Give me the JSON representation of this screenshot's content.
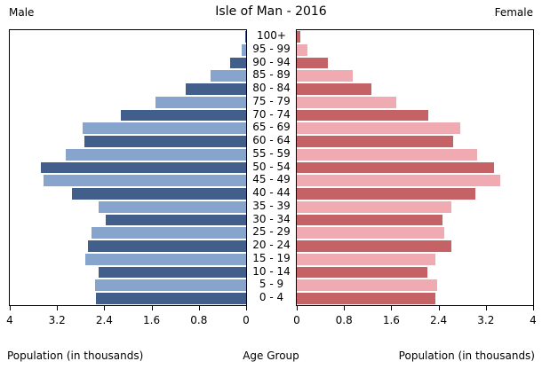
{
  "title": "Isle of Man - 2016",
  "left_header": "Male",
  "right_header": "Female",
  "footer": {
    "left_axis_label": "Population (in thousands)",
    "center_label": "Age Group",
    "right_axis_label": "Population (in thousands)"
  },
  "colors": {
    "male_dark": "#415f8a",
    "male_light": "#87a4cd",
    "female_dark": "#c56266",
    "female_light": "#f0aab2",
    "axis": "#000000",
    "background": "#ffffff"
  },
  "chart_data": {
    "type": "bar",
    "subtype": "population-pyramid",
    "title": "Isle of Man - 2016",
    "xlabel": "Population (in thousands)",
    "center_axis_label": "Age Group",
    "xlim": [
      0,
      4
    ],
    "xticks": [
      0,
      0.8,
      1.6,
      2.4,
      3.2,
      4
    ],
    "grid": false,
    "legend": "none",
    "categories_top_to_bottom": [
      "100+",
      "95 - 99",
      "90 - 94",
      "85 - 89",
      "80 - 84",
      "75 - 79",
      "70 - 74",
      "65 - 69",
      "60 - 64",
      "55 - 59",
      "50 - 54",
      "45 - 49",
      "40 - 44",
      "35 - 39",
      "30 - 34",
      "25 - 29",
      "20 - 24",
      "15 - 19",
      "10 - 14",
      "5 - 9",
      "0 - 4"
    ],
    "series": [
      {
        "name": "Male",
        "side": "left",
        "values": [
          0.02,
          0.07,
          0.27,
          0.6,
          1.02,
          1.53,
          2.12,
          2.76,
          2.74,
          3.05,
          3.48,
          3.43,
          2.95,
          2.5,
          2.37,
          2.62,
          2.68,
          2.72,
          2.5,
          2.55,
          2.54
        ]
      },
      {
        "name": "Female",
        "side": "right",
        "values": [
          0.06,
          0.18,
          0.53,
          0.95,
          1.27,
          1.68,
          2.22,
          2.77,
          2.64,
          3.05,
          3.34,
          3.45,
          3.03,
          2.61,
          2.47,
          2.5,
          2.61,
          2.35,
          2.21,
          2.37,
          2.35
        ]
      }
    ]
  }
}
